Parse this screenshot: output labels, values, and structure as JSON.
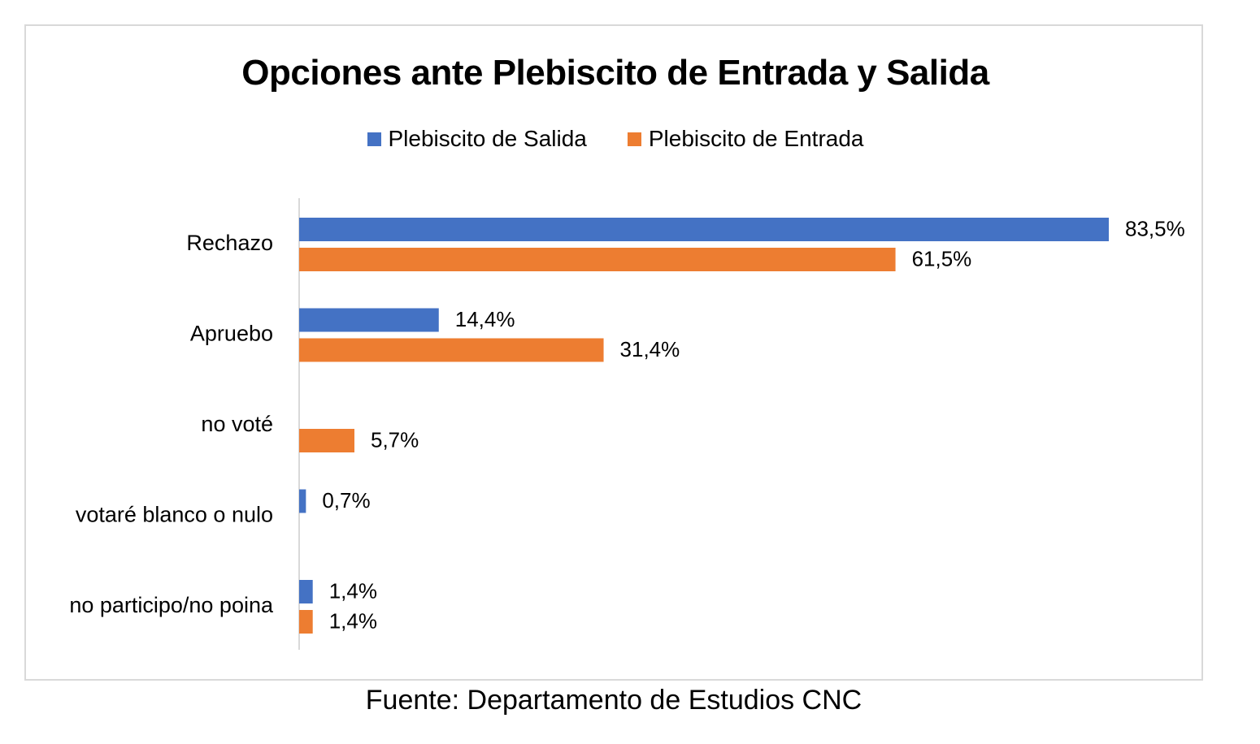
{
  "chart_data": {
    "type": "bar",
    "orientation": "horizontal",
    "title": "Opciones ante Plebiscito de Entrada y Salida",
    "categories": [
      "Rechazo",
      "Apruebo",
      "no voté",
      "votaré blanco o nulo",
      "no participo/no poina"
    ],
    "series": [
      {
        "name": "Plebiscito de Salida",
        "color": "#4472C4",
        "values": [
          83.5,
          14.4,
          null,
          0.7,
          1.4
        ],
        "labels": [
          "83,5%",
          "14,4%",
          null,
          "0,7%",
          "1,4%"
        ]
      },
      {
        "name": "Plebiscito de Entrada",
        "color": "#ED7D31",
        "values": [
          61.5,
          31.4,
          5.7,
          null,
          1.4
        ],
        "labels": [
          "61,5%",
          "31,4%",
          "5,7%",
          null,
          "1,4%"
        ]
      }
    ],
    "xlim": [
      0,
      83.5
    ],
    "legend_position": "top",
    "grid": false
  },
  "source": "Fuente: Departamento de Estudios CNC"
}
